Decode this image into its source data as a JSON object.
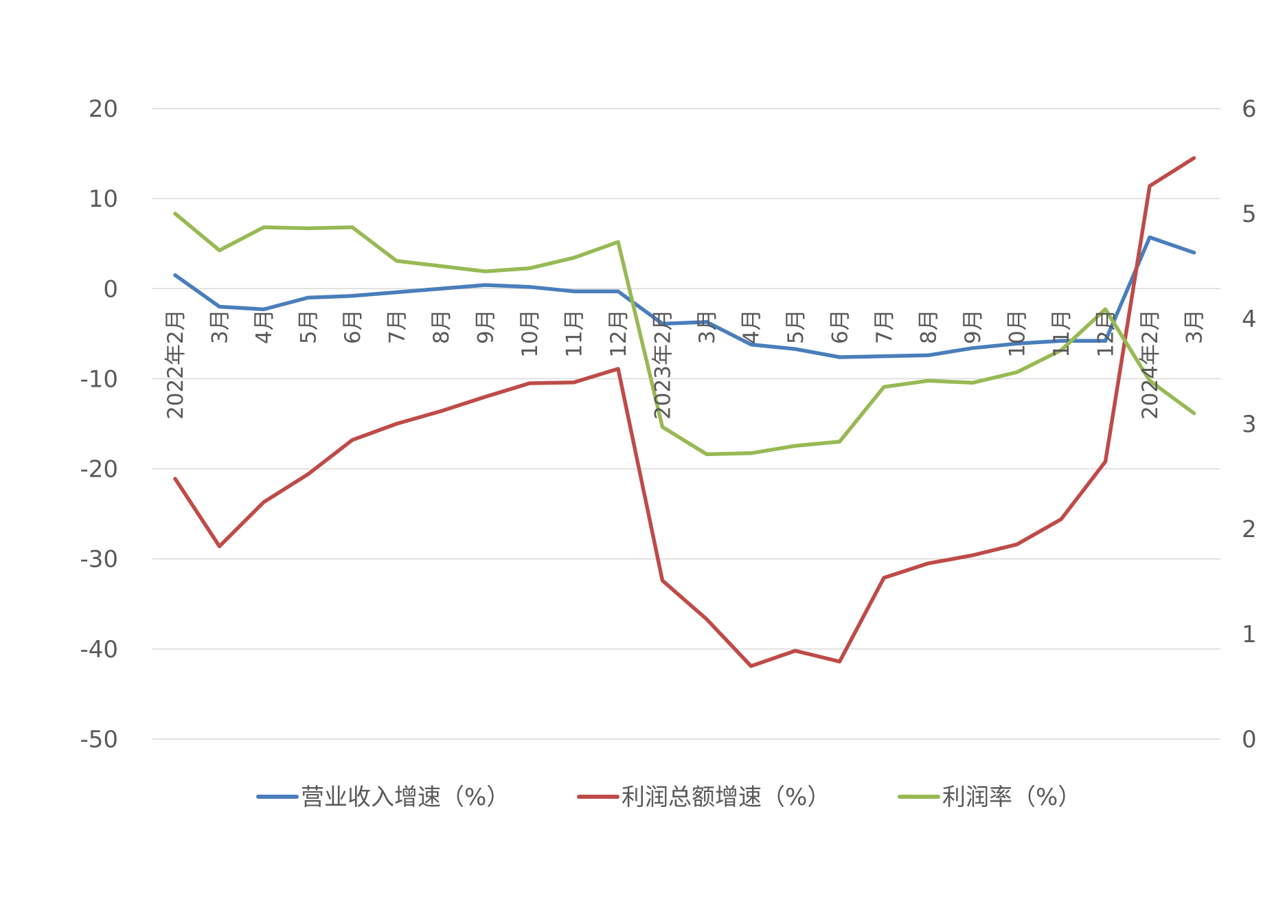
{
  "colors": {
    "revenue": "#4a7ebb",
    "profit_total": "#be4b48",
    "profit_rate": "#98b954",
    "grid": "#d9d9d9",
    "text": "#595959"
  },
  "chart_data": {
    "type": "line",
    "title": "",
    "xlabel": "",
    "ylabel_left": "",
    "ylabel_right": "",
    "ylim_left": [
      -50,
      20
    ],
    "ylim_right": [
      0,
      6
    ],
    "yticks_left": [
      "20",
      "10",
      "0",
      "-10",
      "-20",
      "-30",
      "-40",
      "-50"
    ],
    "yticks_right": [
      "6",
      "5",
      "4",
      "3",
      "2",
      "1",
      "0"
    ],
    "grid": true,
    "legend_position": "bottom",
    "categories": [
      "2022年2月",
      "3月",
      "4月",
      "5月",
      "6月",
      "7月",
      "8月",
      "9月",
      "10月",
      "11月",
      "12月",
      "2023年2月",
      "3月",
      "4月",
      "5月",
      "6月",
      "7月",
      "8月",
      "9月",
      "10月",
      "11月",
      "12月",
      "2024年2月",
      "3月"
    ],
    "series": [
      {
        "name": "营业收入增速（%）",
        "axis": "left",
        "color_key": "revenue",
        "values": [
          1.5,
          -2.0,
          -2.3,
          -1.0,
          -0.8,
          -0.4,
          0.0,
          0.4,
          0.2,
          -0.3,
          -0.3,
          -3.9,
          -3.7,
          -6.2,
          -6.7,
          -7.6,
          -7.5,
          -7.4,
          -6.6,
          -6.1,
          -5.8,
          -5.8,
          5.7,
          4.0
        ]
      },
      {
        "name": "利润总额增速（%）",
        "axis": "left",
        "color_key": "profit_total",
        "values": [
          -21.1,
          -28.6,
          -23.7,
          -20.6,
          -16.8,
          -15.0,
          -13.6,
          -12.0,
          -10.5,
          -10.4,
          -8.9,
          -32.4,
          -36.7,
          -41.9,
          -40.2,
          -41.4,
          -32.1,
          -30.5,
          -29.6,
          -28.4,
          -25.6,
          -19.2,
          11.4,
          14.5
        ]
      },
      {
        "name": "利润率（%）",
        "axis": "right",
        "color_key": "profit_rate",
        "values": [
          5.0,
          4.65,
          4.87,
          4.86,
          4.87,
          4.55,
          4.5,
          4.45,
          4.48,
          4.58,
          4.73,
          2.97,
          2.71,
          2.72,
          2.79,
          2.83,
          3.35,
          3.41,
          3.39,
          3.49,
          3.7,
          4.09,
          3.41,
          3.1
        ]
      }
    ]
  }
}
